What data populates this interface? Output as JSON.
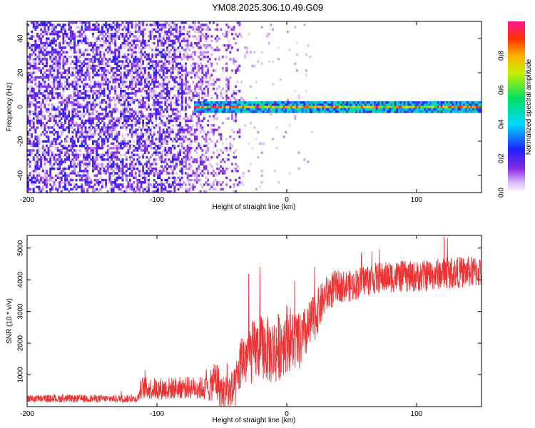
{
  "title": "YM08.2025.306.10.49.G09",
  "chart_data": [
    {
      "type": "heatmap",
      "name": "spectrogram",
      "xlabel": "Height of straight line (km)",
      "ylabel": "Frequency (Hz)",
      "xlim": [
        -200,
        150
      ],
      "ylim": [
        -50,
        50
      ],
      "xticks": [
        -200,
        -100,
        0,
        100
      ],
      "yticks": [
        -40,
        -20,
        0,
        20,
        40
      ],
      "xtick_labels": [
        "-200",
        "-100",
        "0",
        "100"
      ],
      "ytick_labels": [
        "-40",
        "-20",
        "0",
        "20",
        "40"
      ],
      "colorbar": {
        "label": "Normalized spectral amplitude",
        "range": [
          0,
          1
        ],
        "ticks": [
          0.0,
          0.2,
          0.4,
          0.6,
          0.8
        ],
        "tick_labels": [
          "0.0",
          "0.2",
          "0.4",
          "0.6",
          "0.8"
        ],
        "colormap": "rainbow"
      },
      "features": {
        "noise_region_x": [
          -200,
          -35
        ],
        "sparse_noise_x": [
          -40,
          20
        ],
        "signal_start_x": -72,
        "signal_frequency_hz": 0,
        "signal_amplitude_range": [
          0.3,
          1.0
        ]
      }
    },
    {
      "type": "line",
      "name": "snr",
      "xlabel": "Height of straight line (km)",
      "ylabel": "SNR (10 * v/v)",
      "xlim": [
        -200,
        150
      ],
      "ylim": [
        0,
        5400
      ],
      "xticks": [
        -200,
        -100,
        0,
        100
      ],
      "yticks": [
        1000,
        2000,
        3000,
        4000,
        5000
      ],
      "xtick_labels": [
        "-200",
        "-100",
        "0",
        "100"
      ],
      "ytick_labels": [
        "1000",
        "2000",
        "3000",
        "4000",
        "5000"
      ],
      "series": [
        {
          "name": "SNR",
          "color": "#ee3333",
          "x": [
            -200,
            -180,
            -160,
            -140,
            -120,
            -115,
            -112,
            -100,
            -80,
            -70,
            -60,
            -55,
            -50,
            -40,
            -35,
            -30,
            -20,
            -10,
            0,
            10,
            20,
            30,
            35,
            40,
            50,
            60,
            80,
            100,
            120,
            140,
            150
          ],
          "y": [
            250,
            250,
            250,
            250,
            250,
            250,
            600,
            550,
            600,
            600,
            550,
            900,
            400,
            500,
            1500,
            1600,
            1900,
            1700,
            2200,
            2000,
            2700,
            3500,
            3700,
            3800,
            3800,
            4000,
            4100,
            4100,
            4200,
            4250,
            4250
          ],
          "spread": [
            120,
            120,
            120,
            120,
            120,
            120,
            350,
            350,
            350,
            350,
            400,
            700,
            600,
            700,
            900,
            1000,
            1000,
            1100,
            1100,
            900,
            800,
            600,
            600,
            500,
            500,
            500,
            500,
            500,
            500,
            500,
            500
          ]
        }
      ]
    }
  ],
  "colors": {
    "snr_line": "#ee3333",
    "background": "#ffffff",
    "axis": "#000000"
  }
}
